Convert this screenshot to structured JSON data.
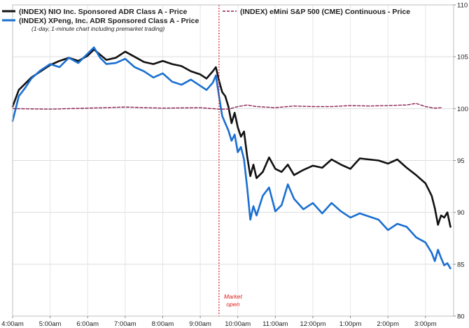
{
  "chart_data": {
    "type": "line",
    "title": "",
    "xlabel": "",
    "ylabel": "",
    "legend_position": "top-left",
    "grid": true,
    "xlim": [
      "4:00am",
      "3:45pm"
    ],
    "ylim": [
      80,
      110
    ],
    "y_ticks": [
      80,
      85,
      90,
      95,
      100,
      105,
      110
    ],
    "x_ticks": [
      "4:00am",
      "5:00am",
      "6:00am",
      "7:00am",
      "8:00am",
      "9:00am",
      "10:00am",
      "11:00am",
      "12:00pm",
      "1:00pm",
      "2:00pm",
      "3:00pm"
    ],
    "note": "(1-day, 1-minute chart including premarket trading)",
    "annotation": {
      "label_line1": "Market",
      "label_line2": "open",
      "x": "9:30am"
    },
    "series": [
      {
        "name": "(INDEX) NIO Inc. Sponsored ADR Class A - Price",
        "color": "#111111",
        "style": "solid",
        "points": [
          [
            "4:00am",
            100.2
          ],
          [
            "4:10am",
            101.8
          ],
          [
            "4:20am",
            102.4
          ],
          [
            "4:30am",
            103.0
          ],
          [
            "4:45am",
            103.6
          ],
          [
            "5:00am",
            104.2
          ],
          [
            "5:15am",
            104.6
          ],
          [
            "5:30am",
            104.9
          ],
          [
            "5:45am",
            104.6
          ],
          [
            "6:00am",
            105.1
          ],
          [
            "6:10am",
            105.7
          ],
          [
            "6:20am",
            105.2
          ],
          [
            "6:30am",
            104.7
          ],
          [
            "6:45am",
            104.9
          ],
          [
            "7:00am",
            105.5
          ],
          [
            "7:15am",
            105.0
          ],
          [
            "7:30am",
            104.5
          ],
          [
            "7:45am",
            104.3
          ],
          [
            "8:00am",
            104.6
          ],
          [
            "8:15am",
            104.3
          ],
          [
            "8:30am",
            104.1
          ],
          [
            "8:45am",
            103.6
          ],
          [
            "9:00am",
            103.3
          ],
          [
            "9:10am",
            102.9
          ],
          [
            "9:20am",
            103.6
          ],
          [
            "9:25am",
            104.0
          ],
          [
            "9:30am",
            102.7
          ],
          [
            "9:35am",
            101.6
          ],
          [
            "9:40am",
            101.2
          ],
          [
            "9:45am",
            100.2
          ],
          [
            "9:50am",
            98.6
          ],
          [
            "9:55am",
            99.6
          ],
          [
            "10:00am",
            98.2
          ],
          [
            "10:05am",
            97.3
          ],
          [
            "10:10am",
            97.8
          ],
          [
            "10:15am",
            95.4
          ],
          [
            "10:20am",
            93.5
          ],
          [
            "10:25am",
            94.6
          ],
          [
            "10:30am",
            93.3
          ],
          [
            "10:40am",
            93.9
          ],
          [
            "10:50am",
            95.3
          ],
          [
            "11:00am",
            94.2
          ],
          [
            "11:10am",
            93.9
          ],
          [
            "11:20am",
            94.6
          ],
          [
            "11:30am",
            93.6
          ],
          [
            "11:45am",
            94.1
          ],
          [
            "12:00pm",
            94.5
          ],
          [
            "12:15pm",
            94.3
          ],
          [
            "12:30pm",
            95.1
          ],
          [
            "12:45pm",
            94.6
          ],
          [
            "1:00pm",
            94.2
          ],
          [
            "1:15pm",
            95.2
          ],
          [
            "1:30pm",
            95.1
          ],
          [
            "1:45pm",
            95.0
          ],
          [
            "2:00pm",
            94.7
          ],
          [
            "2:15pm",
            95.1
          ],
          [
            "2:30pm",
            94.3
          ],
          [
            "2:45pm",
            93.6
          ],
          [
            "3:00pm",
            92.8
          ],
          [
            "3:10pm",
            91.6
          ],
          [
            "3:15pm",
            90.4
          ],
          [
            "3:20pm",
            88.8
          ],
          [
            "3:25pm",
            89.7
          ],
          [
            "3:30pm",
            89.5
          ],
          [
            "3:35pm",
            90.0
          ],
          [
            "3:40pm",
            88.6
          ]
        ]
      },
      {
        "name": "(INDEX) XPeng, Inc. ADR Sponsored Class A - Price",
        "color": "#1a6fd1",
        "style": "solid",
        "points": [
          [
            "4:00am",
            98.8
          ],
          [
            "4:10am",
            101.2
          ],
          [
            "4:20am",
            102.0
          ],
          [
            "4:30am",
            102.9
          ],
          [
            "4:45am",
            103.7
          ],
          [
            "5:00am",
            104.3
          ],
          [
            "5:15am",
            104.0
          ],
          [
            "5:30am",
            104.9
          ],
          [
            "5:45am",
            104.4
          ],
          [
            "6:00am",
            105.3
          ],
          [
            "6:10am",
            105.9
          ],
          [
            "6:20am",
            104.9
          ],
          [
            "6:30am",
            104.3
          ],
          [
            "6:45am",
            104.4
          ],
          [
            "7:00am",
            104.8
          ],
          [
            "7:15am",
            104.0
          ],
          [
            "7:30am",
            103.6
          ],
          [
            "7:45am",
            103.0
          ],
          [
            "8:00am",
            103.4
          ],
          [
            "8:15am",
            102.6
          ],
          [
            "8:30am",
            102.3
          ],
          [
            "8:45am",
            102.8
          ],
          [
            "9:00am",
            102.2
          ],
          [
            "9:10am",
            101.8
          ],
          [
            "9:20am",
            102.5
          ],
          [
            "9:25am",
            103.2
          ],
          [
            "9:30am",
            101.2
          ],
          [
            "9:35am",
            99.3
          ],
          [
            "9:40am",
            98.6
          ],
          [
            "9:45am",
            97.9
          ],
          [
            "9:50am",
            96.9
          ],
          [
            "9:55am",
            97.5
          ],
          [
            "10:00am",
            95.8
          ],
          [
            "10:05am",
            96.3
          ],
          [
            "10:10am",
            95.1
          ],
          [
            "10:15am",
            92.4
          ],
          [
            "10:20am",
            89.3
          ],
          [
            "10:25am",
            90.6
          ],
          [
            "10:30am",
            89.7
          ],
          [
            "10:40am",
            91.6
          ],
          [
            "10:50am",
            92.4
          ],
          [
            "11:00am",
            90.1
          ],
          [
            "11:10am",
            90.7
          ],
          [
            "11:20am",
            92.7
          ],
          [
            "11:30am",
            91.3
          ],
          [
            "11:45am",
            90.3
          ],
          [
            "12:00pm",
            90.9
          ],
          [
            "12:15pm",
            89.9
          ],
          [
            "12:30pm",
            90.9
          ],
          [
            "12:45pm",
            90.1
          ],
          [
            "1:00pm",
            89.5
          ],
          [
            "1:15pm",
            89.9
          ],
          [
            "1:30pm",
            89.6
          ],
          [
            "1:45pm",
            89.3
          ],
          [
            "2:00pm",
            88.3
          ],
          [
            "2:15pm",
            88.9
          ],
          [
            "2:30pm",
            88.6
          ],
          [
            "2:45pm",
            87.6
          ],
          [
            "3:00pm",
            87.1
          ],
          [
            "3:10pm",
            86.1
          ],
          [
            "3:15pm",
            85.3
          ],
          [
            "3:20pm",
            86.4
          ],
          [
            "3:25pm",
            85.6
          ],
          [
            "3:30pm",
            84.9
          ],
          [
            "3:35pm",
            85.1
          ],
          [
            "3:40pm",
            84.6
          ]
        ]
      },
      {
        "name": "(INDEX) eMini S&P 500 (CME) Continuous - Price",
        "color": "#8b2252",
        "style": "dashed",
        "points": [
          [
            "4:00am",
            100.0
          ],
          [
            "5:00am",
            99.95
          ],
          [
            "6:00am",
            100.05
          ],
          [
            "7:00am",
            100.15
          ],
          [
            "8:00am",
            100.05
          ],
          [
            "9:00am",
            100.1
          ],
          [
            "9:30am",
            99.95
          ],
          [
            "9:45am",
            99.95
          ],
          [
            "10:00am",
            100.2
          ],
          [
            "10:15am",
            100.35
          ],
          [
            "10:30am",
            100.2
          ],
          [
            "11:00am",
            100.1
          ],
          [
            "11:30am",
            100.25
          ],
          [
            "12:00pm",
            100.2
          ],
          [
            "12:30pm",
            100.2
          ],
          [
            "1:00pm",
            100.3
          ],
          [
            "1:30pm",
            100.25
          ],
          [
            "2:00pm",
            100.3
          ],
          [
            "2:30pm",
            100.35
          ],
          [
            "2:45pm",
            100.5
          ],
          [
            "3:00pm",
            100.2
          ],
          [
            "3:15pm",
            100.05
          ],
          [
            "3:25pm",
            100.1
          ]
        ]
      }
    ]
  }
}
